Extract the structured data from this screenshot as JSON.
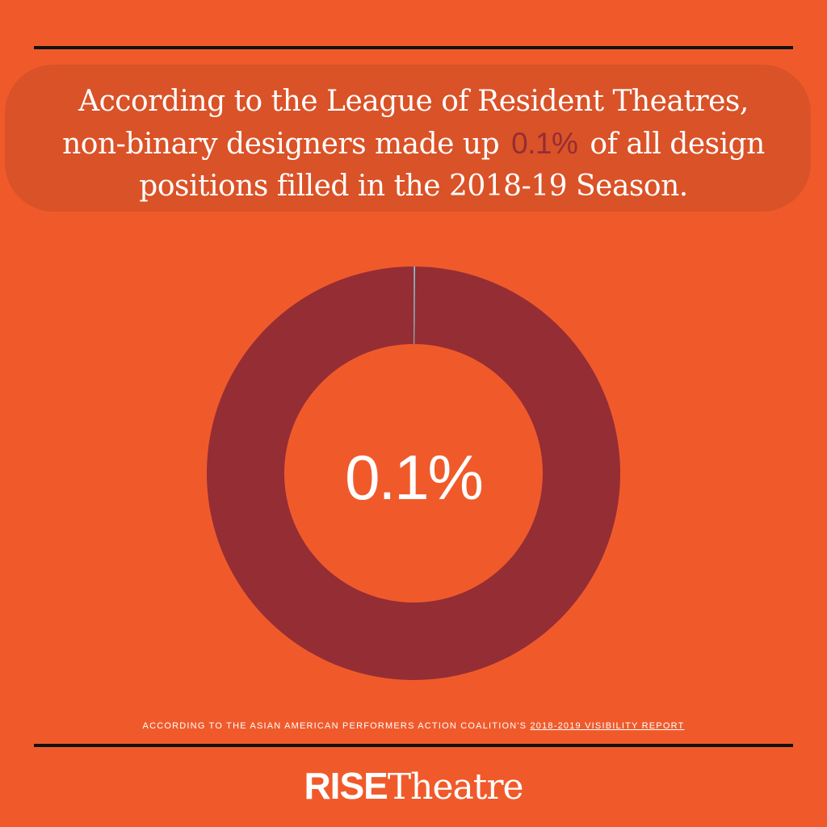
{
  "colors": {
    "background": "#F05A2B",
    "headline_box": "#DA5227",
    "major_slice": "#952D34",
    "minor_slice": "#7FD3E3",
    "highlight_text": "#952D34"
  },
  "headline": {
    "line1": "According to the League of Resident Theatres,",
    "line2_before": "non-binary designers made up",
    "line2_highlight": "0.1%",
    "line2_after": "of all design",
    "line3": "positions filled in the 2018-19 Season."
  },
  "chart_data": {
    "type": "pie",
    "values": [
      0.1,
      99.9
    ],
    "colors": [
      "#7FD3E3",
      "#952D34"
    ],
    "center_label": "0.1%"
  },
  "source": {
    "prefix": "ACCORDING TO THE ASIAN AMERICAN PERFORMERS ACTION COALITION'S",
    "link_text": "2018-2019 VISIBILITY REPORT"
  },
  "logo": {
    "bold": "RISE",
    "regular": "Theatre"
  }
}
